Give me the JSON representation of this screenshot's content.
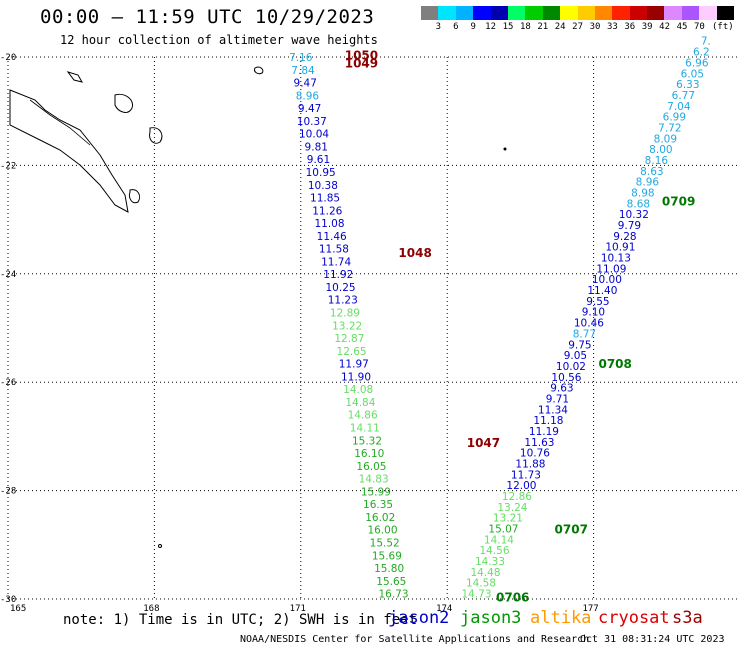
{
  "title": "00:00 — 11:59 UTC 10/29/2023",
  "subtitle": "12 hour collection of altimeter wave heights",
  "colorbar": {
    "colors": [
      "#7f7f7f",
      "#00e5ff",
      "#00b2ff",
      "#0000ff",
      "#0000b0",
      "#00ff66",
      "#00cc00",
      "#008800",
      "#ffff00",
      "#ffcc00",
      "#ff8800",
      "#ff2200",
      "#cc0000",
      "#990000",
      "#dd88ff",
      "#aa55ff",
      "#ffccff",
      "#000000"
    ],
    "labels": [
      "3",
      "6",
      "9",
      "12",
      "15",
      "18",
      "21",
      "24",
      "27",
      "30",
      "33",
      "36",
      "39",
      "42",
      "45",
      "70"
    ],
    "unit": "(ft)"
  },
  "axes": {
    "lat_labels": [
      "-20",
      "-22",
      "-24",
      "-26",
      "-28",
      "-30"
    ],
    "lon_labels": [
      "165",
      "168",
      "171",
      "174",
      "177"
    ]
  },
  "tracks": [
    {
      "name": "track-west",
      "lon_start": 171.0,
      "lat_start": -20.0,
      "lon_end": 172.9,
      "lat_end": -29.9,
      "points": [
        {
          "v": "7.16",
          "c": "#22a8e0"
        },
        {
          "v": "7.84",
          "c": "#22a8e0"
        },
        {
          "v": "9.47",
          "c": "#0000cc"
        },
        {
          "v": "8.96",
          "c": "#22a8e0"
        },
        {
          "v": "9.47",
          "c": "#0000cc"
        },
        {
          "v": "10.37",
          "c": "#0000cc"
        },
        {
          "v": "10.04",
          "c": "#0000cc"
        },
        {
          "v": "9.81",
          "c": "#0000cc"
        },
        {
          "v": "9.61",
          "c": "#0000cc"
        },
        {
          "v": "10.95",
          "c": "#0000cc"
        },
        {
          "v": "10.38",
          "c": "#0000cc"
        },
        {
          "v": "11.85",
          "c": "#0000cc"
        },
        {
          "v": "11.26",
          "c": "#0000cc"
        },
        {
          "v": "11.08",
          "c": "#0000cc"
        },
        {
          "v": "11.46",
          "c": "#0000cc"
        },
        {
          "v": "11.58",
          "c": "#0000cc"
        },
        {
          "v": "11.74",
          "c": "#0000cc"
        },
        {
          "v": "11.92",
          "c": "#0000cc"
        },
        {
          "v": "10.25",
          "c": "#0000cc"
        },
        {
          "v": "11.23",
          "c": "#0000cc"
        },
        {
          "v": "12.89",
          "c": "#66dd66"
        },
        {
          "v": "13.22",
          "c": "#66dd66"
        },
        {
          "v": "12.87",
          "c": "#66dd66"
        },
        {
          "v": "12.65",
          "c": "#66dd66"
        },
        {
          "v": "11.97",
          "c": "#0000cc"
        },
        {
          "v": "11.90",
          "c": "#0000cc"
        },
        {
          "v": "14.08",
          "c": "#66dd66"
        },
        {
          "v": "14.84",
          "c": "#66dd66"
        },
        {
          "v": "14.86",
          "c": "#66dd66"
        },
        {
          "v": "14.11",
          "c": "#66dd66"
        },
        {
          "v": "15.32",
          "c": "#22aa22"
        },
        {
          "v": "16.10",
          "c": "#22aa22"
        },
        {
          "v": "16.05",
          "c": "#22aa22"
        },
        {
          "v": "14.83",
          "c": "#66dd66"
        },
        {
          "v": "15.99",
          "c": "#22aa22"
        },
        {
          "v": "16.35",
          "c": "#22aa22"
        },
        {
          "v": "16.02",
          "c": "#22aa22"
        },
        {
          "v": "16.00",
          "c": "#22aa22"
        },
        {
          "v": "15.52",
          "c": "#22aa22"
        },
        {
          "v": "15.69",
          "c": "#22aa22"
        },
        {
          "v": "15.80",
          "c": "#22aa22"
        },
        {
          "v": "15.65",
          "c": "#22aa22"
        },
        {
          "v": "16.73",
          "c": "#22aa22"
        }
      ]
    },
    {
      "name": "track-east",
      "lon_start": 179.3,
      "lat_start": -19.7,
      "lon_end": 174.6,
      "lat_end": -29.9,
      "points": [
        {
          "v": "7.",
          "c": "#22a8e0"
        },
        {
          "v": "6.2",
          "c": "#22a8e0"
        },
        {
          "v": "6.96",
          "c": "#22a8e0"
        },
        {
          "v": "6.05",
          "c": "#22a8e0"
        },
        {
          "v": "6.33",
          "c": "#22a8e0"
        },
        {
          "v": "6.77",
          "c": "#22a8e0"
        },
        {
          "v": "7.04",
          "c": "#22a8e0"
        },
        {
          "v": "6.99",
          "c": "#22a8e0"
        },
        {
          "v": "7.72",
          "c": "#22a8e0"
        },
        {
          "v": "8.09",
          "c": "#22a8e0"
        },
        {
          "v": "8.00",
          "c": "#22a8e0"
        },
        {
          "v": "8.16",
          "c": "#22a8e0"
        },
        {
          "v": "8.63",
          "c": "#22a8e0"
        },
        {
          "v": "8.96",
          "c": "#22a8e0"
        },
        {
          "v": "8.98",
          "c": "#22a8e0"
        },
        {
          "v": "8.68",
          "c": "#22a8e0"
        },
        {
          "v": "10.32",
          "c": "#0000cc"
        },
        {
          "v": "9.79",
          "c": "#0000cc"
        },
        {
          "v": "9.28",
          "c": "#0000cc"
        },
        {
          "v": "10.91",
          "c": "#0000cc"
        },
        {
          "v": "10.13",
          "c": "#0000cc"
        },
        {
          "v": "11.09",
          "c": "#0000cc"
        },
        {
          "v": "10.00",
          "c": "#0000cc"
        },
        {
          "v": "11.40",
          "c": "#0000cc"
        },
        {
          "v": "9.55",
          "c": "#0000cc"
        },
        {
          "v": "9.10",
          "c": "#0000cc"
        },
        {
          "v": "10.46",
          "c": "#0000cc"
        },
        {
          "v": "8.77",
          "c": "#22a8e0"
        },
        {
          "v": "9.75",
          "c": "#0000cc"
        },
        {
          "v": "9.05",
          "c": "#0000cc"
        },
        {
          "v": "10.02",
          "c": "#0000cc"
        },
        {
          "v": "10.56",
          "c": "#0000cc"
        },
        {
          "v": "9.63",
          "c": "#0000cc"
        },
        {
          "v": "9.71",
          "c": "#0000cc"
        },
        {
          "v": "11.34",
          "c": "#0000cc"
        },
        {
          "v": "11.18",
          "c": "#0000cc"
        },
        {
          "v": "11.19",
          "c": "#0000cc"
        },
        {
          "v": "11.63",
          "c": "#0000cc"
        },
        {
          "v": "10.76",
          "c": "#0000cc"
        },
        {
          "v": "11.88",
          "c": "#0000cc"
        },
        {
          "v": "11.73",
          "c": "#0000cc"
        },
        {
          "v": "12.00",
          "c": "#0000cc"
        },
        {
          "v": "12.86",
          "c": "#66dd66"
        },
        {
          "v": "13.24",
          "c": "#66dd66"
        },
        {
          "v": "13.21",
          "c": "#66dd66"
        },
        {
          "v": "15.07",
          "c": "#22aa22"
        },
        {
          "v": "14.14",
          "c": "#66dd66"
        },
        {
          "v": "14.56",
          "c": "#66dd66"
        },
        {
          "v": "14.33",
          "c": "#66dd66"
        },
        {
          "v": "14.48",
          "c": "#66dd66"
        },
        {
          "v": "14.58",
          "c": "#66dd66"
        },
        {
          "v": "14.73",
          "c": "#66dd66"
        }
      ]
    }
  ],
  "time_labels": [
    {
      "text": "1050",
      "c": "#8b0000",
      "lon": 171.9,
      "lat": -19.95
    },
    {
      "text": "1049",
      "c": "#8b0000",
      "lon": 171.9,
      "lat": -20.1
    },
    {
      "text": "1048",
      "c": "#8b0000",
      "lon": 173.0,
      "lat": -23.6
    },
    {
      "text": "1047",
      "c": "#8b0000",
      "lon": 174.4,
      "lat": -27.1
    },
    {
      "text": "0709",
      "c": "#007700",
      "lon": 178.4,
      "lat": -22.65
    },
    {
      "text": "0708",
      "c": "#007700",
      "lon": 177.1,
      "lat": -25.65
    },
    {
      "text": "0707",
      "c": "#007700",
      "lon": 176.2,
      "lat": -28.7
    },
    {
      "text": "0706",
      "c": "#007700",
      "lon": 175.0,
      "lat": -29.95
    }
  ],
  "note": "note: 1) Time is in UTC; 2) SWH is in feet",
  "satellites": [
    {
      "name": "jason2",
      "c": "#0000cc"
    },
    {
      "name": "jason3",
      "c": "#009900"
    },
    {
      "name": "altika",
      "c": "#ff9900"
    },
    {
      "name": "cryosat",
      "c": "#dd0000"
    },
    {
      "name": "s3a",
      "c": "#990000"
    }
  ],
  "footer": "NOAA/NESDIS Center for Satellite Applications and Research",
  "footer_time": "Oct 31 08:31:24 UTC 2023"
}
